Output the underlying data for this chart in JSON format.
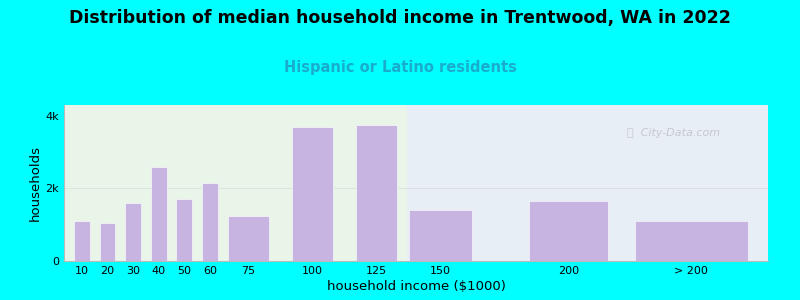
{
  "title": "Distribution of median household income in Trentwood, WA in 2022",
  "subtitle": "Hispanic or Latino residents",
  "xlabel": "household income ($1000)",
  "ylabel": "households",
  "background_outer": "#00FFFF",
  "background_inner_left": "#eaf5ea",
  "background_inner_right": "#e8eef5",
  "bar_color": "#c8b4e0",
  "bar_edgecolor": "#ffffff",
  "categories": [
    "10",
    "20",
    "30",
    "40",
    "50",
    "60",
    "75",
    "100",
    "125",
    "150",
    "200",
    "> 200"
  ],
  "values": [
    1100,
    1050,
    1600,
    2600,
    1700,
    2150,
    1250,
    3700,
    3750,
    1400,
    1650,
    1100
  ],
  "bar_positions": [
    10,
    20,
    30,
    40,
    50,
    60,
    75,
    100,
    125,
    150,
    200,
    248
  ],
  "bar_actual_widths": [
    7,
    7,
    7,
    7,
    7,
    7,
    18,
    18,
    18,
    28,
    35,
    50
  ],
  "ylim": [
    0,
    4300
  ],
  "yticks": [
    0,
    2000,
    4000
  ],
  "ytick_labels": [
    "0",
    "2k",
    "4k"
  ],
  "title_fontsize": 12.5,
  "subtitle_fontsize": 10.5,
  "subtitle_color": "#1AACCC",
  "axis_label_fontsize": 9.5,
  "xlim_min": 3,
  "xlim_max": 278,
  "split_x": 137
}
